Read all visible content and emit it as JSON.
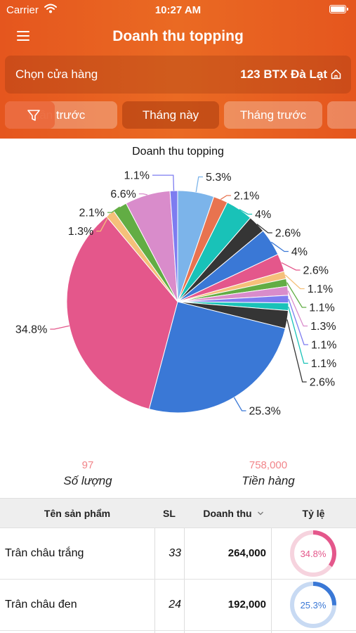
{
  "status_bar": {
    "carrier": "Carrier",
    "time": "10:27 AM"
  },
  "header": {
    "title": "Doanh thu topping"
  },
  "store": {
    "label": "Chọn cửa hàng",
    "value": "123 BTX Đà Lạt"
  },
  "filters": {
    "tabs": [
      "Tuần trước",
      "Tháng này",
      "Tháng trước"
    ],
    "active_index": 1
  },
  "colors": {
    "header": "#e5561e",
    "accent": "#f2858a"
  },
  "chart_data": {
    "type": "pie",
    "title": "Doanh thu topping",
    "slices": [
      {
        "value": 5.3,
        "label": "5.3%",
        "color": "#7cb4ea"
      },
      {
        "value": 2.1,
        "label": "2.1%",
        "color": "#e8734f"
      },
      {
        "value": 4.0,
        "label": "4%",
        "color": "#19c2b8"
      },
      {
        "value": 2.6,
        "label": "2.6%",
        "color": "#353535"
      },
      {
        "value": 4.0,
        "label": "4%",
        "color": "#3a78d6"
      },
      {
        "value": 2.6,
        "label": "2.6%",
        "color": "#e4578b"
      },
      {
        "value": 1.1,
        "label": "1.1%",
        "color": "#f5c07a"
      },
      {
        "value": 1.1,
        "label": "1.1%",
        "color": "#62ad44"
      },
      {
        "value": 1.3,
        "label": "1.3%",
        "color": "#d98ccb"
      },
      {
        "value": 1.1,
        "label": "1.1%",
        "color": "#7d7cf0"
      },
      {
        "value": 1.1,
        "label": "1.1%",
        "color": "#19c2b8"
      },
      {
        "value": 2.6,
        "label": "2.6%",
        "color": "#353535"
      },
      {
        "value": 25.3,
        "label": "25.3%",
        "color": "#3a78d6"
      },
      {
        "value": 34.8,
        "label": "34.8%",
        "color": "#e4578b"
      },
      {
        "value": 1.3,
        "label": "1.3%",
        "color": "#f5c07a"
      },
      {
        "value": 2.1,
        "label": "2.1%",
        "color": "#62ad44"
      },
      {
        "value": 6.6,
        "label": "6.6%",
        "color": "#d98ccb"
      },
      {
        "value": 1.1,
        "label": "1.1%",
        "color": "#7d7cf0"
      }
    ]
  },
  "summary": {
    "quantity": {
      "value": "97",
      "label": "Số lượng"
    },
    "amount": {
      "value": "758,000",
      "label": "Tiền hàng"
    }
  },
  "table": {
    "headers": {
      "name": "Tên sản phẩm",
      "sl": "SL",
      "revenue": "Doanh thu",
      "rate": "Tỷ lệ"
    },
    "rows": [
      {
        "name": "Trân châu trắng",
        "sl": "33",
        "revenue": "264,000",
        "rate": "34.8%",
        "rate_value": 34.8,
        "color": "#e4578b",
        "track": "#f6d3de"
      },
      {
        "name": "Trân châu đen",
        "sl": "24",
        "revenue": "192,000",
        "rate": "25.3%",
        "rate_value": 25.3,
        "color": "#3a78d6",
        "track": "#c8daf3"
      }
    ]
  }
}
